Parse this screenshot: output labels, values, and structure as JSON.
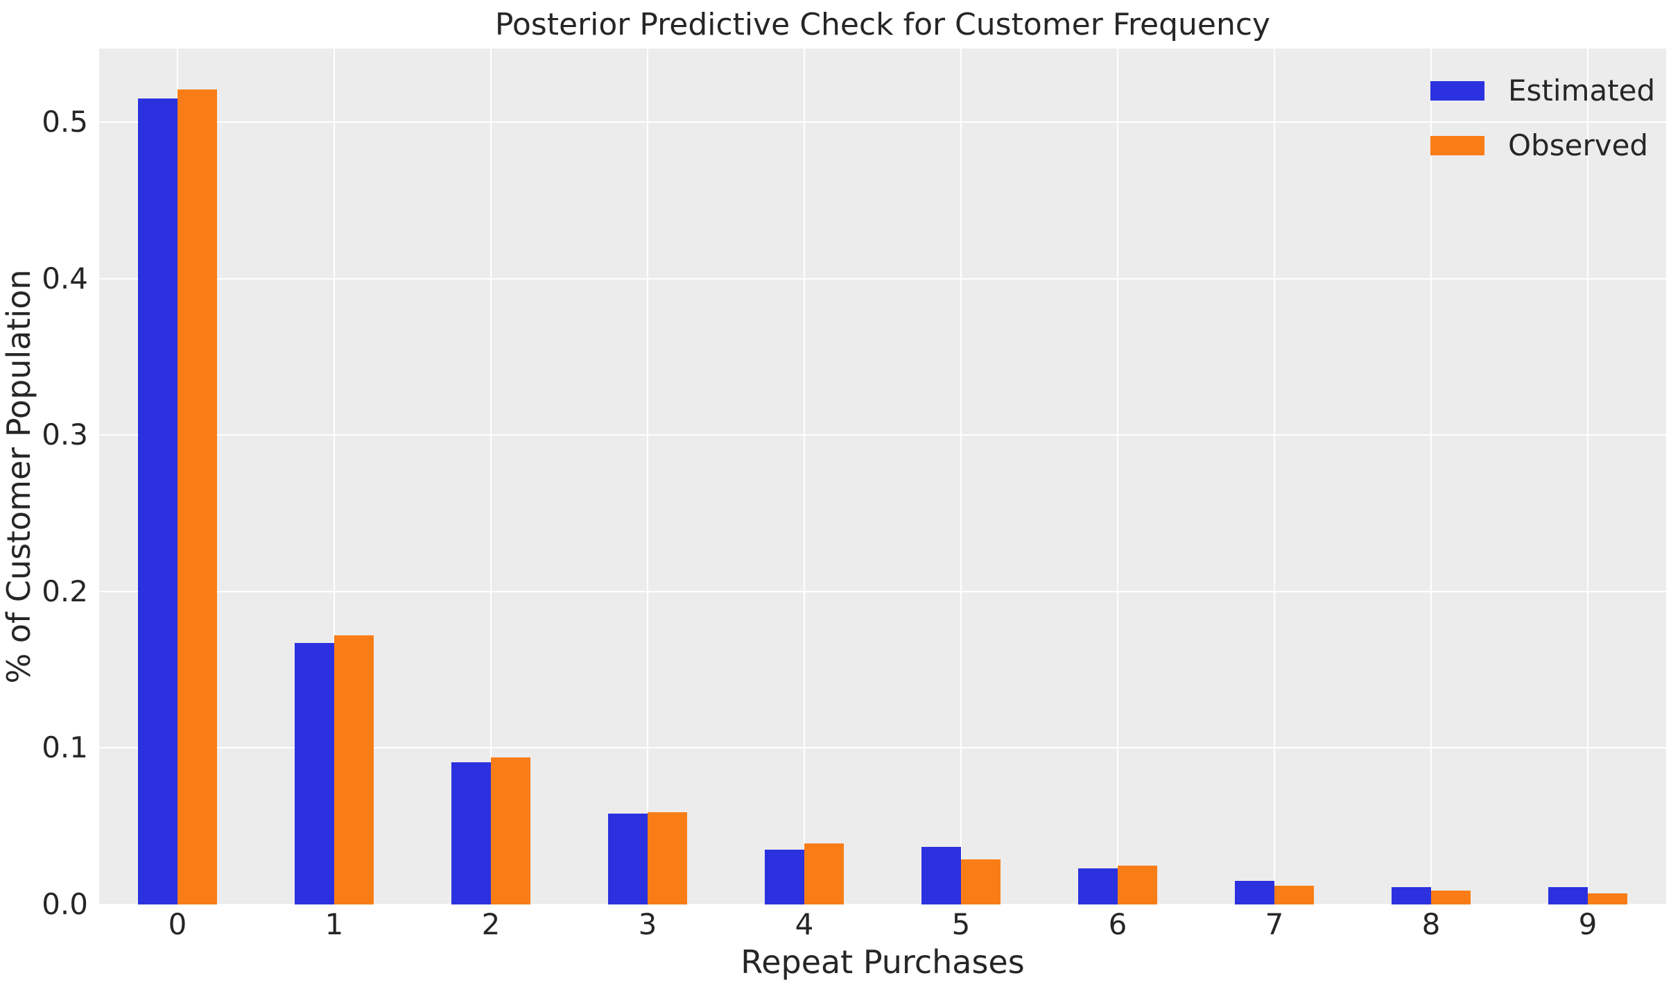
{
  "chart_data": {
    "type": "bar",
    "title": "Posterior Predictive Check for Customer Frequency",
    "xlabel": "Repeat Purchases",
    "ylabel": "% of Customer Population",
    "categories": [
      "0",
      "1",
      "2",
      "3",
      "4",
      "5",
      "6",
      "7",
      "8",
      "9"
    ],
    "series": [
      {
        "name": "Estimated",
        "color": "#2b31df",
        "values": [
          0.515,
          0.167,
          0.091,
          0.058,
          0.035,
          0.037,
          0.023,
          0.015,
          0.011,
          0.011
        ]
      },
      {
        "name": "Observed",
        "color": "#f97d16",
        "values": [
          0.521,
          0.172,
          0.094,
          0.059,
          0.039,
          0.029,
          0.025,
          0.012,
          0.009,
          0.007
        ]
      }
    ],
    "ylim": [
      0,
      0.547
    ],
    "yticks": [
      "0.0",
      "0.1",
      "0.2",
      "0.3",
      "0.4",
      "0.5"
    ],
    "grid": true,
    "legend_position": "upper right",
    "colors": {
      "plot_background": "#ececec",
      "grid_line": "#ffffff",
      "text": "#262626",
      "figure_background": "#ffffff"
    }
  }
}
